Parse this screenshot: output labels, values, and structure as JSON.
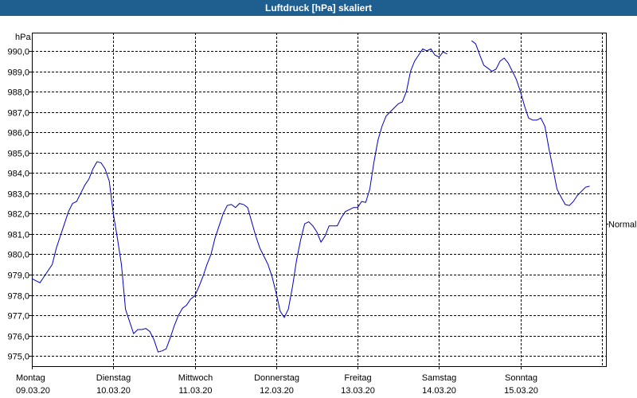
{
  "window": {
    "title": "Luftdruck [hPa] skaliert"
  },
  "chart_data": {
    "type": "line",
    "title": "Luftdruck [hPa] skaliert",
    "ylabel": "hPa",
    "ylim": [
      974.5,
      990.9
    ],
    "xlim": [
      0,
      7.05
    ],
    "yticks": [
      "975,0",
      "976,0",
      "977,0",
      "978,0",
      "979,0",
      "980,0",
      "981,0",
      "982,0",
      "983,0",
      "984,0",
      "985,0",
      "986,0",
      "987,0",
      "988,0",
      "989,0",
      "990,0"
    ],
    "ytick_values": [
      975,
      976,
      977,
      978,
      979,
      980,
      981,
      982,
      983,
      984,
      985,
      986,
      987,
      988,
      989,
      990
    ],
    "xticks": [
      {
        "day": "Montag",
        "date": "09.03.20"
      },
      {
        "day": "Dienstag",
        "date": "10.03.20"
      },
      {
        "day": "Mittwoch",
        "date": "11.03.20"
      },
      {
        "day": "Donnerstag",
        "date": "12.03.20"
      },
      {
        "day": "Freitag",
        "date": "13.03.20"
      },
      {
        "day": "Samstag",
        "date": "14.03.20"
      },
      {
        "day": "Sonntag",
        "date": "15.03.20"
      }
    ],
    "reference_label": "Normal",
    "reference_value": 981.5,
    "grid": true,
    "series_color": "#0000c0",
    "series": [
      {
        "segments": [
          [
            [
              0.0,
              978.8
            ],
            [
              0.05,
              978.7
            ],
            [
              0.1,
              978.6
            ],
            [
              0.15,
              978.9
            ],
            [
              0.2,
              979.2
            ],
            [
              0.25,
              979.5
            ],
            [
              0.3,
              980.3
            ],
            [
              0.35,
              980.9
            ],
            [
              0.4,
              981.5
            ],
            [
              0.45,
              982.1
            ],
            [
              0.5,
              982.5
            ],
            [
              0.55,
              982.6
            ],
            [
              0.6,
              983.0
            ],
            [
              0.65,
              983.4
            ],
            [
              0.7,
              983.7
            ],
            [
              0.75,
              984.2
            ],
            [
              0.8,
              984.55
            ],
            [
              0.85,
              984.5
            ],
            [
              0.9,
              984.2
            ],
            [
              0.95,
              983.6
            ],
            [
              1.0,
              982.0
            ],
            [
              1.05,
              980.8
            ],
            [
              1.1,
              979.5
            ],
            [
              1.15,
              977.3
            ],
            [
              1.2,
              976.7
            ],
            [
              1.25,
              976.1
            ],
            [
              1.3,
              976.3
            ],
            [
              1.35,
              976.3
            ],
            [
              1.4,
              976.35
            ],
            [
              1.45,
              976.2
            ],
            [
              1.5,
              975.8
            ],
            [
              1.55,
              975.2
            ],
            [
              1.6,
              975.25
            ],
            [
              1.65,
              975.35
            ],
            [
              1.7,
              975.9
            ],
            [
              1.75,
              976.5
            ],
            [
              1.8,
              977.0
            ],
            [
              1.85,
              977.35
            ],
            [
              1.9,
              977.5
            ],
            [
              1.95,
              977.8
            ],
            [
              2.0,
              977.95
            ],
            [
              2.05,
              978.4
            ],
            [
              2.1,
              978.9
            ],
            [
              2.15,
              979.5
            ],
            [
              2.2,
              980.0
            ],
            [
              2.25,
              980.8
            ],
            [
              2.3,
              981.4
            ],
            [
              2.35,
              982.0
            ],
            [
              2.4,
              982.4
            ],
            [
              2.45,
              982.45
            ],
            [
              2.5,
              982.3
            ],
            [
              2.55,
              982.5
            ],
            [
              2.6,
              982.45
            ],
            [
              2.65,
              982.3
            ],
            [
              2.7,
              981.6
            ],
            [
              2.75,
              980.9
            ],
            [
              2.8,
              980.3
            ],
            [
              2.85,
              979.9
            ],
            [
              2.9,
              979.5
            ],
            [
              2.95,
              978.9
            ],
            [
              3.0,
              978.1
            ],
            [
              3.05,
              977.2
            ],
            [
              3.1,
              976.9
            ],
            [
              3.15,
              977.3
            ],
            [
              3.2,
              978.4
            ],
            [
              3.25,
              979.7
            ],
            [
              3.3,
              980.7
            ],
            [
              3.35,
              981.5
            ],
            [
              3.4,
              981.6
            ],
            [
              3.45,
              981.4
            ],
            [
              3.5,
              981.1
            ],
            [
              3.55,
              980.6
            ],
            [
              3.6,
              980.9
            ],
            [
              3.65,
              981.4
            ],
            [
              3.7,
              981.4
            ],
            [
              3.75,
              981.4
            ],
            [
              3.8,
              981.8
            ],
            [
              3.85,
              982.1
            ],
            [
              3.9,
              982.2
            ],
            [
              3.95,
              982.3
            ],
            [
              4.0,
              982.3
            ],
            [
              4.05,
              982.6
            ],
            [
              4.1,
              982.55
            ],
            [
              4.15,
              983.2
            ],
            [
              4.2,
              984.5
            ],
            [
              4.25,
              985.6
            ],
            [
              4.3,
              986.3
            ],
            [
              4.35,
              986.8
            ],
            [
              4.4,
              987.0
            ],
            [
              4.45,
              987.2
            ],
            [
              4.5,
              987.4
            ],
            [
              4.55,
              987.5
            ],
            [
              4.6,
              988.0
            ],
            [
              4.65,
              989.0
            ],
            [
              4.7,
              989.5
            ],
            [
              4.75,
              989.8
            ],
            [
              4.8,
              990.1
            ],
            [
              4.85,
              990.0
            ],
            [
              4.9,
              990.1
            ],
            [
              4.95,
              989.8
            ],
            [
              5.0,
              989.7
            ],
            [
              5.05,
              989.95
            ],
            [
              5.1,
              989.85
            ]
          ],
          [
            [
              5.4,
              990.5
            ],
            [
              5.45,
              990.35
            ],
            [
              5.5,
              989.8
            ],
            [
              5.55,
              989.3
            ],
            [
              5.6,
              989.15
            ],
            [
              5.65,
              989.0
            ],
            [
              5.7,
              989.1
            ],
            [
              5.75,
              989.5
            ],
            [
              5.8,
              989.65
            ],
            [
              5.85,
              989.4
            ],
            [
              5.9,
              989.0
            ],
            [
              5.95,
              988.6
            ],
            [
              6.0,
              988.0
            ],
            [
              6.05,
              987.3
            ],
            [
              6.1,
              986.7
            ],
            [
              6.15,
              986.6
            ],
            [
              6.2,
              986.6
            ],
            [
              6.25,
              986.7
            ],
            [
              6.3,
              986.3
            ],
            [
              6.35,
              985.2
            ],
            [
              6.4,
              984.2
            ],
            [
              6.45,
              983.2
            ],
            [
              6.5,
              982.8
            ],
            [
              6.55,
              982.45
            ],
            [
              6.6,
              982.4
            ],
            [
              6.65,
              982.6
            ],
            [
              6.7,
              982.9
            ],
            [
              6.75,
              983.1
            ],
            [
              6.8,
              983.3
            ],
            [
              6.85,
              983.35
            ]
          ]
        ]
      }
    ]
  }
}
